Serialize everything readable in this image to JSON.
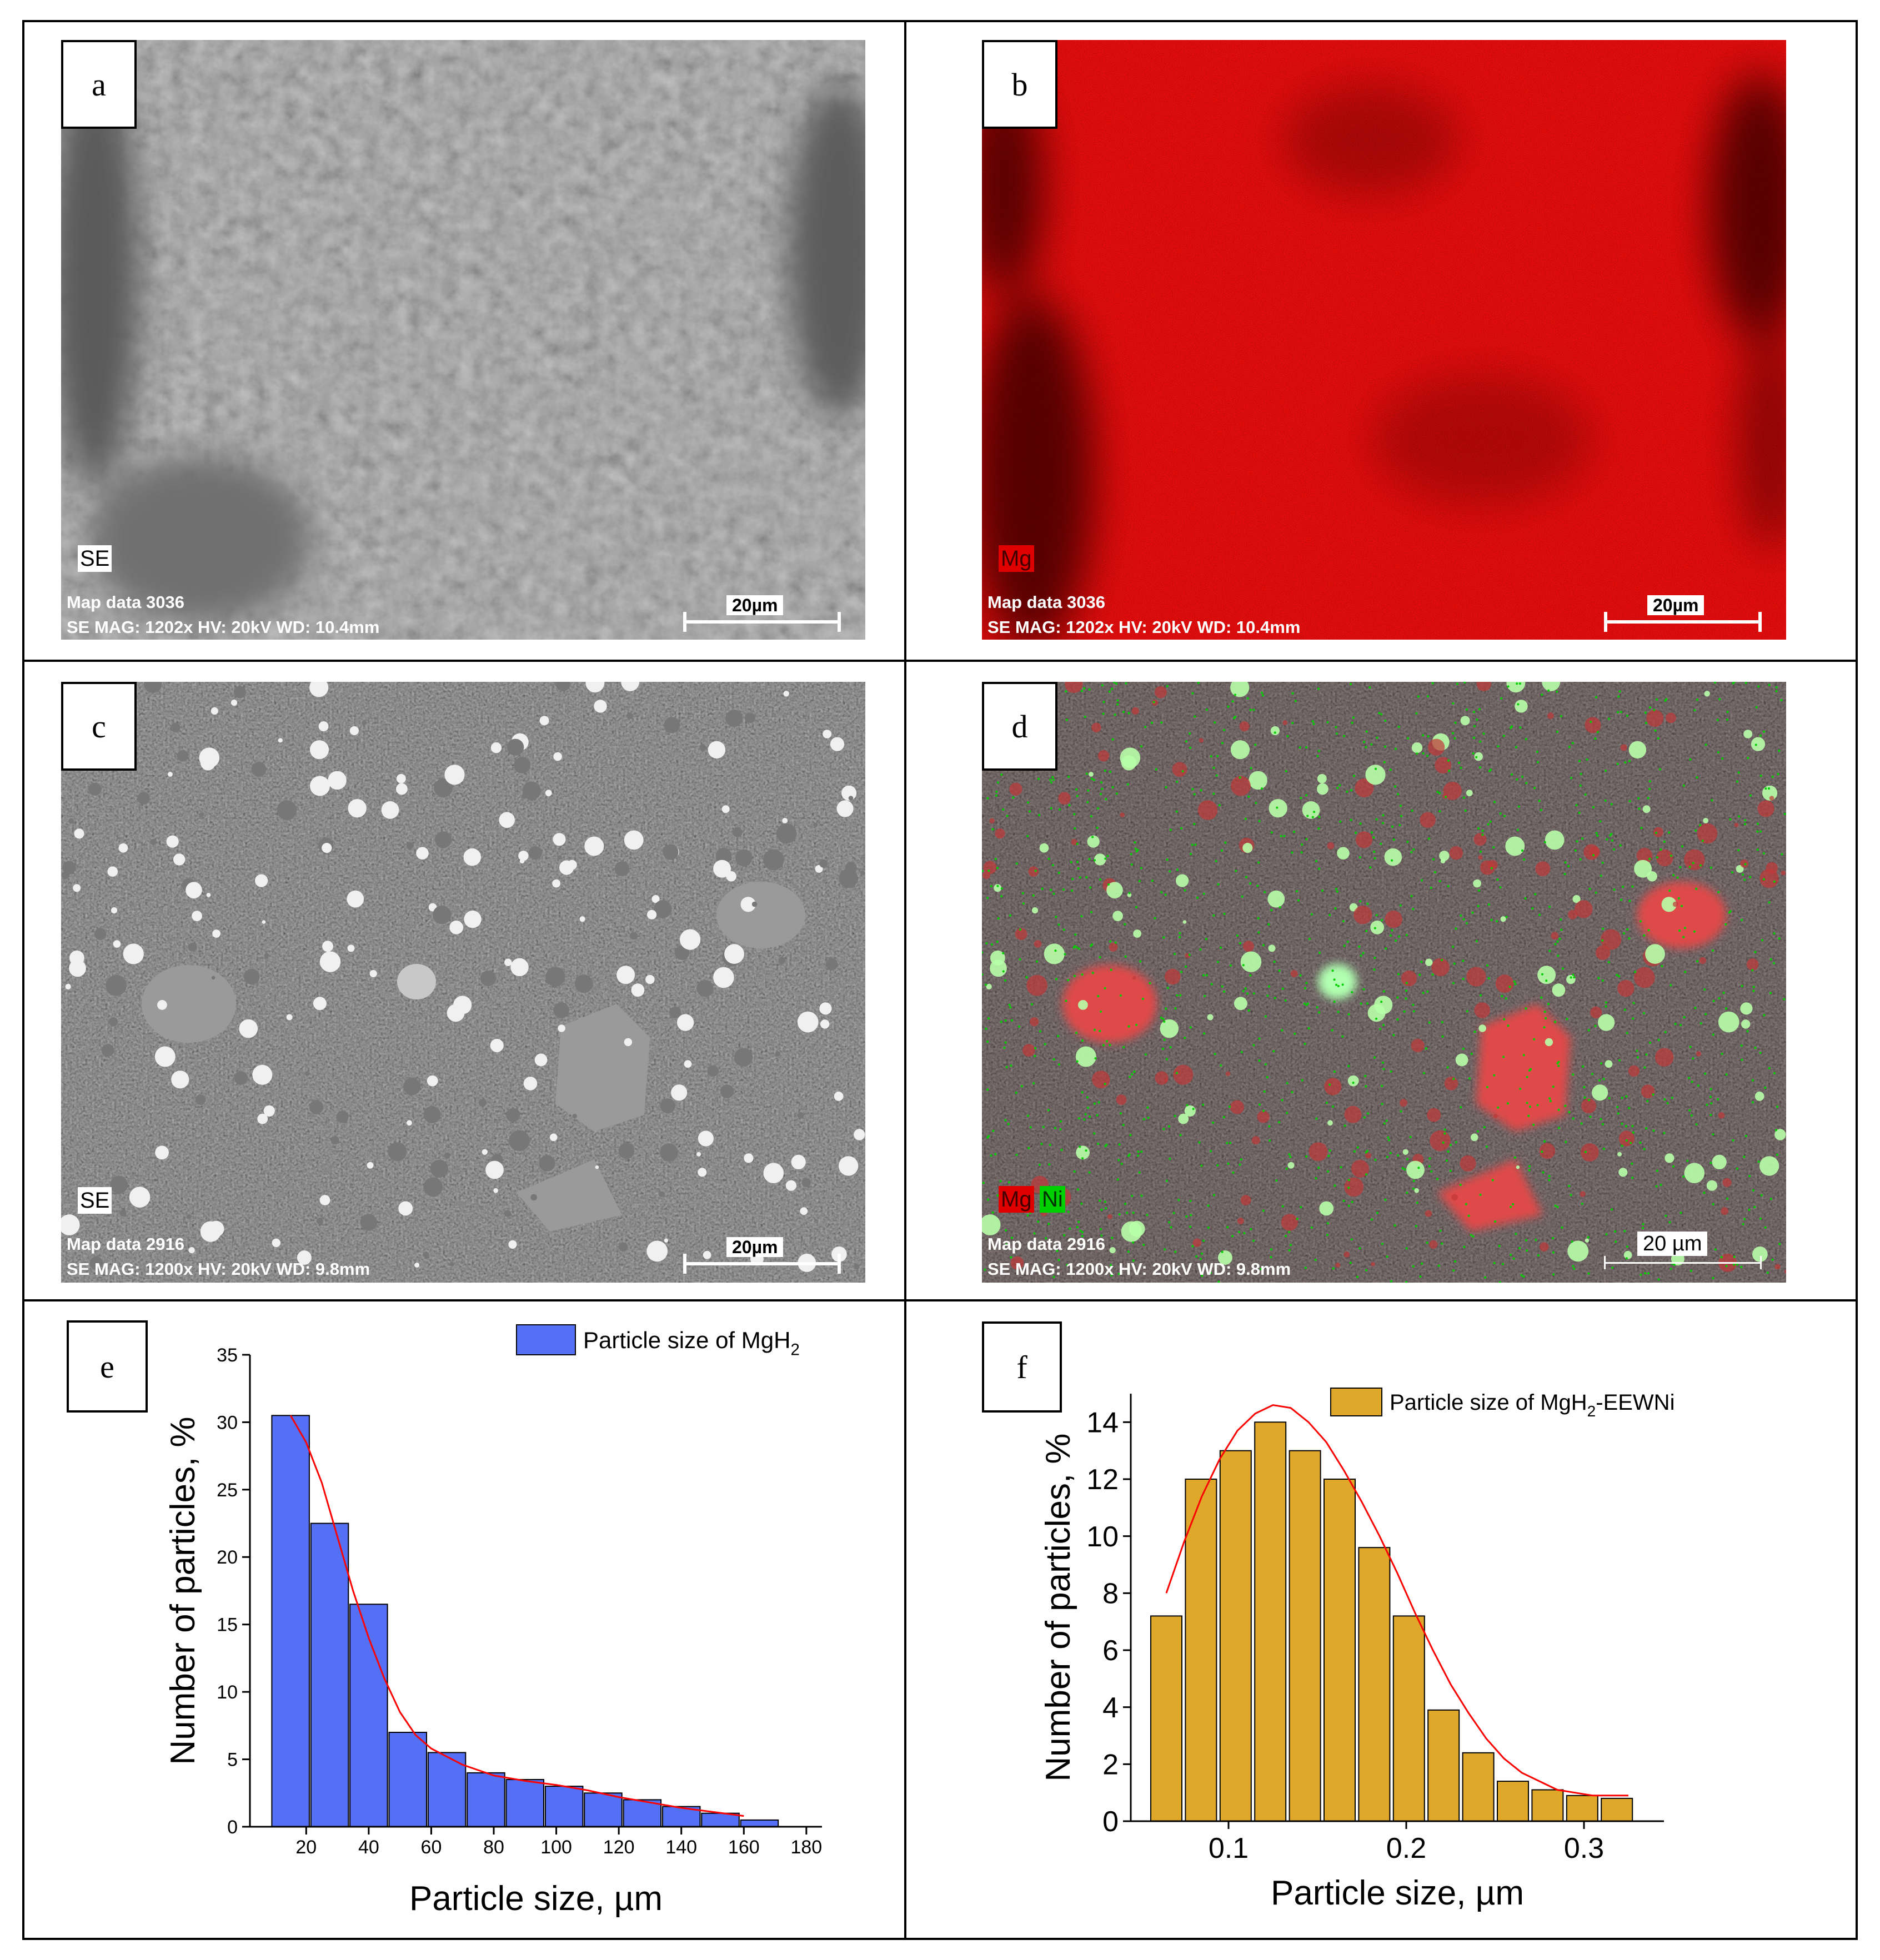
{
  "panels": {
    "a": {
      "letter": "a",
      "detector_label": "SE",
      "map_line": "Map data 3036",
      "info_line": "SE  MAG: 1202x  HV: 20kV  WD: 10.4mm",
      "scale_label": "20µm"
    },
    "b": {
      "letter": "b",
      "element_labels": [
        "Mg"
      ],
      "map_line": "Map data 3036",
      "info_line": "SE  MAG: 1202x  HV: 20kV  WD: 10.4mm",
      "scale_label": "20µm"
    },
    "c": {
      "letter": "c",
      "detector_label": "SE",
      "map_line": "Map data 2916",
      "info_line": "SE  MAG: 1200x  HV: 20kV  WD: 9.8mm",
      "scale_label": "20µm"
    },
    "d": {
      "letter": "d",
      "element_labels": [
        "Mg",
        "Ni"
      ],
      "map_line": "Map data 2916",
      "info_line": "SE  MAG: 1200x  HV: 20kV  WD: 9.8mm",
      "scale_label": "20 µm"
    },
    "e": {
      "letter": "e"
    },
    "f": {
      "letter": "f"
    }
  },
  "colors": {
    "mg_red": "#ff1a1a",
    "ni_green": "#00e000",
    "bar_blue": "#5470f5",
    "bar_gold": "#e0a82a",
    "fit_red": "#ff0000"
  },
  "chart_data": [
    {
      "type": "bar",
      "title": "",
      "xlabel": "Particle size, µm",
      "ylabel": "Number of particles, %",
      "legend": "Particle size of MgH2",
      "legend_position": "top-right",
      "xlim": [
        2,
        185
      ],
      "ylim": [
        0,
        35
      ],
      "x_ticks": [
        20,
        40,
        60,
        80,
        100,
        120,
        140,
        160,
        180
      ],
      "y_ticks": [
        0,
        5,
        10,
        15,
        20,
        25,
        30,
        35
      ],
      "bin_width": 12,
      "x": [
        15,
        27.5,
        40,
        52.5,
        65,
        77.5,
        90,
        102.5,
        115,
        127.5,
        140,
        152.5,
        165
      ],
      "values": [
        30.5,
        22.5,
        16.5,
        7.0,
        5.5,
        4.0,
        3.5,
        3.0,
        2.5,
        2.0,
        1.5,
        1.0,
        0.5
      ],
      "fit_curve": {
        "x": [
          15,
          20,
          25,
          30,
          35,
          40,
          45,
          50,
          55,
          60,
          70,
          80,
          90,
          100,
          110,
          120,
          130,
          140,
          150,
          160
        ],
        "y": [
          30.5,
          28.5,
          25.5,
          21.5,
          17.5,
          14.0,
          11.0,
          8.5,
          6.8,
          5.8,
          4.6,
          3.8,
          3.4,
          3.1,
          2.7,
          2.2,
          1.8,
          1.4,
          1.1,
          0.8
        ]
      }
    },
    {
      "type": "bar",
      "title": "",
      "xlabel": "Particle size, µm",
      "ylabel": "Number of particles, %",
      "legend": "Particle size of MgH2-EEWNi",
      "legend_position": "top-right",
      "xlim": [
        0.045,
        0.345
      ],
      "ylim": [
        0,
        15
      ],
      "x_ticks": [
        0.1,
        0.2,
        0.3
      ],
      "y_ticks": [
        0,
        2,
        4,
        6,
        8,
        10,
        12,
        14
      ],
      "bin_width": 0.0175,
      "x": [
        0.065,
        0.0845,
        0.104,
        0.1235,
        0.143,
        0.1625,
        0.182,
        0.2015,
        0.221,
        0.2405,
        0.26,
        0.2795,
        0.299,
        0.3185
      ],
      "values": [
        7.2,
        12.0,
        13.0,
        14.0,
        13.0,
        12.0,
        9.6,
        7.2,
        3.9,
        2.4,
        1.4,
        1.1,
        0.9,
        0.8
      ],
      "fit_curve": {
        "x": [
          0.065,
          0.075,
          0.085,
          0.095,
          0.105,
          0.115,
          0.125,
          0.135,
          0.145,
          0.155,
          0.165,
          0.175,
          0.185,
          0.195,
          0.205,
          0.215,
          0.225,
          0.235,
          0.245,
          0.255,
          0.265,
          0.275,
          0.285,
          0.295,
          0.305,
          0.315,
          0.325
        ],
        "y": [
          8.0,
          9.8,
          11.4,
          12.7,
          13.7,
          14.3,
          14.6,
          14.5,
          14.0,
          13.3,
          12.3,
          11.2,
          10.0,
          8.7,
          7.3,
          6.0,
          4.8,
          3.8,
          2.9,
          2.2,
          1.7,
          1.4,
          1.1,
          1.0,
          0.9,
          0.9,
          0.9
        ]
      }
    }
  ]
}
